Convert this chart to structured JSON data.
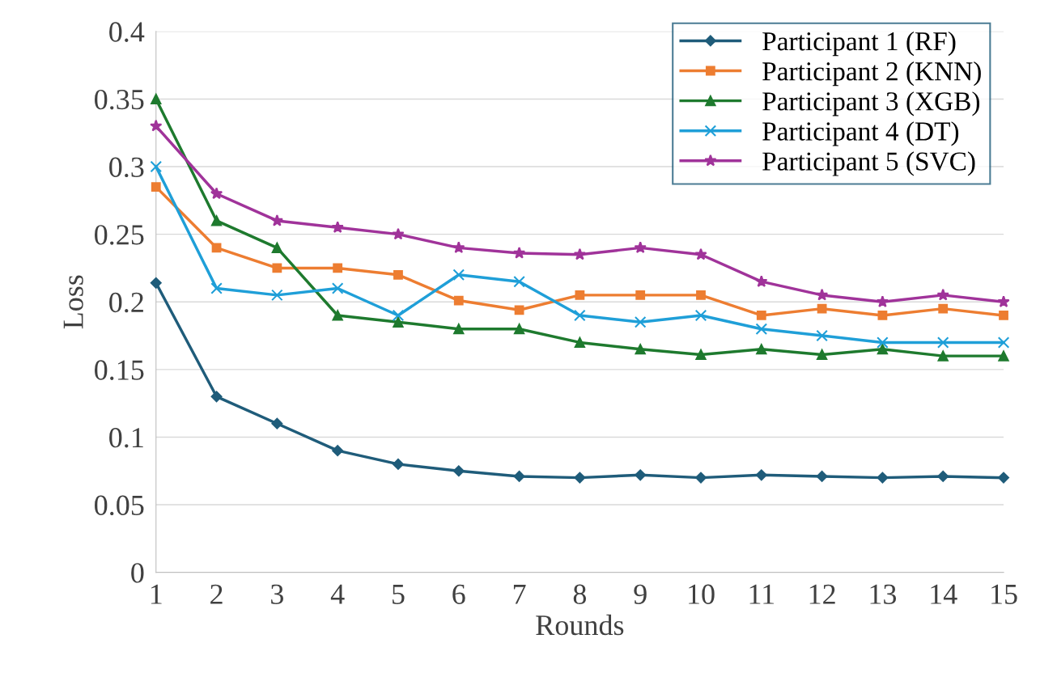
{
  "chart_data": {
    "type": "line",
    "xlabel": "Rounds",
    "ylabel": "Loss",
    "x": [
      1,
      2,
      3,
      4,
      5,
      6,
      7,
      8,
      9,
      10,
      11,
      12,
      13,
      14,
      15
    ],
    "xlim": [
      1,
      15
    ],
    "xticks": [
      1,
      2,
      3,
      4,
      5,
      6,
      7,
      8,
      9,
      10,
      11,
      12,
      13,
      14,
      15
    ],
    "ylim": [
      0,
      0.4
    ],
    "yticks": [
      0,
      0.05,
      0.1,
      0.15,
      0.2,
      0.25,
      0.3,
      0.35,
      0.4
    ],
    "grid": "y",
    "legend": "top right",
    "line_style": "solid",
    "series": [
      {
        "name": "Participant 1 (RF)",
        "color": "#1f5c7a",
        "marker": "diamond",
        "values": [
          0.214,
          0.13,
          0.11,
          0.09,
          0.08,
          0.075,
          0.071,
          0.07,
          0.072,
          0.07,
          0.072,
          0.071,
          0.07,
          0.071,
          0.07
        ]
      },
      {
        "name": "Participant 2 (KNN)",
        "color": "#ed7d31",
        "marker": "square",
        "values": [
          0.285,
          0.24,
          0.225,
          0.225,
          0.22,
          0.201,
          0.194,
          0.205,
          0.205,
          0.205,
          0.19,
          0.195,
          0.19,
          0.195,
          0.19
        ]
      },
      {
        "name": "Participant 3 (XGB)",
        "color": "#1e7a2e",
        "marker": "triangle",
        "values": [
          0.35,
          0.26,
          0.24,
          0.19,
          0.185,
          0.18,
          0.18,
          0.17,
          0.165,
          0.161,
          0.165,
          0.161,
          0.165,
          0.16,
          0.16
        ]
      },
      {
        "name": "Participant 4 (DT)",
        "color": "#1f9fd8",
        "marker": "cross",
        "values": [
          0.3,
          0.21,
          0.205,
          0.21,
          0.19,
          0.22,
          0.215,
          0.19,
          0.185,
          0.19,
          0.18,
          0.175,
          0.17,
          0.17,
          0.17
        ]
      },
      {
        "name": "Participant 5 (SVC)",
        "color": "#a0339a",
        "marker": "star",
        "values": [
          0.33,
          0.28,
          0.26,
          0.255,
          0.25,
          0.24,
          0.236,
          0.235,
          0.24,
          0.235,
          0.215,
          0.205,
          0.2,
          0.205,
          0.2
        ]
      }
    ]
  }
}
